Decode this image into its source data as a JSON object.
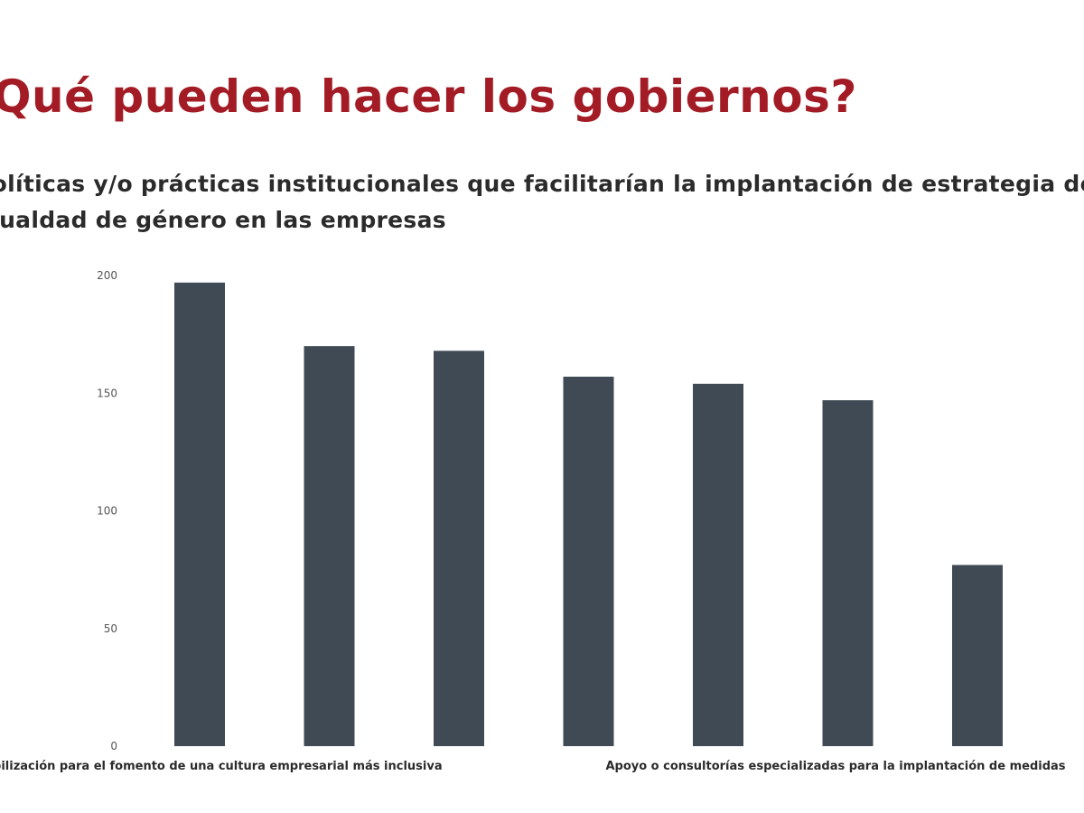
{
  "header": {
    "title": "Qué pueden hacer los gobiernos?",
    "subtitle": "Políticas y/o prácticas institucionales que facilitarían la implantación de estrategia de igualdad de género en las empresas",
    "title_color": "#a31c25"
  },
  "chart_data": {
    "type": "bar",
    "title": "",
    "xlabel": "",
    "ylabel": "",
    "ylim": [
      0,
      200
    ],
    "yticks": [
      0,
      50,
      100,
      150,
      200
    ],
    "grid": false,
    "bar_color": "#404a54",
    "categories": [
      "Sensibilización para el fomento de una cultura empresarial más inclusiva",
      "",
      "",
      "",
      "Apoyo o consultorías especializadas para la implantación de medidas",
      "",
      ""
    ],
    "values": [
      197,
      170,
      168,
      157,
      154,
      147,
      77
    ]
  }
}
